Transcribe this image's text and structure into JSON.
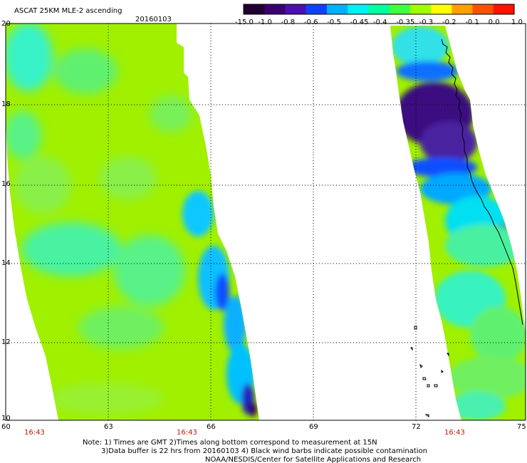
{
  "title": "ASCAT 25KM MLE-2 ascending",
  "date": "20160103",
  "colorbar": {
    "labels": [
      "-15.0",
      "-1.0",
      "-0.8",
      "-0.6",
      "-0.5",
      "-0.45",
      "-0.4",
      "-0.35",
      "-0.3",
      "-0.2",
      "-0.1",
      "0.0",
      "1.0"
    ],
    "colors": [
      "#200030",
      "#3a0070",
      "#4a10b0",
      "#1040ff",
      "#00b0ff",
      "#00f0f0",
      "#00ffa0",
      "#40ff40",
      "#a0ff00",
      "#ffff00",
      "#ffa000",
      "#ff5000",
      "#ff1000"
    ]
  },
  "axes": {
    "lat_labels": [
      "20",
      "18",
      "16",
      "14",
      "12",
      "10"
    ],
    "lon_labels": [
      "60",
      "63",
      "66",
      "69",
      "72",
      "75"
    ]
  },
  "pass_times": [
    "16:43",
    "16:43",
    "16:43"
  ],
  "notes": {
    "line1": "Note: 1) Times are GMT 2)Times along bottom correspond to measurement at 15N",
    "line2": "3)Data buffer is 22 hrs from 20160103 4) Black wind barbs indicate possible contamination",
    "line3": "NOAA/NESDIS/Center for Satellite Applications and Research"
  },
  "map_data": {
    "lat_range": [
      10,
      20
    ],
    "lon_range": [
      60,
      75
    ],
    "swaths": [
      {
        "name": "west",
        "dominant_value_range": [
          -0.3,
          -0.2
        ],
        "east_edge_value_range": [
          -1.0,
          -0.5
        ]
      },
      {
        "name": "east",
        "dominant_value_range": [
          -0.35,
          -0.2
        ],
        "north_value_range": [
          -15.0,
          -0.8
        ]
      }
    ]
  }
}
